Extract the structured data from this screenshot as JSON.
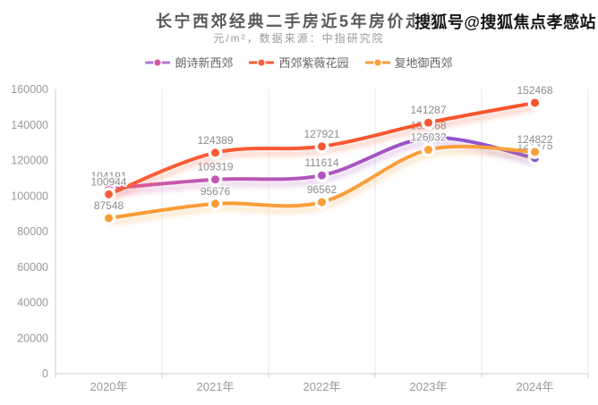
{
  "watermark": {
    "text": "搜狐号@搜狐焦点孝感站"
  },
  "chart_data": {
    "type": "line",
    "smooth": true,
    "title": "长宁西郊经典二手房近5年房价走势",
    "subtitle": "元/m²，数据来源：中指研究院",
    "xlabel": "",
    "ylabel": "",
    "categories": [
      "2020年",
      "2021年",
      "2022年",
      "2023年",
      "2024年"
    ],
    "series": [
      {
        "name": "朗诗新西郊",
        "values": [
          104191,
          109319,
          111614,
          132668,
          121375
        ],
        "line_color_start": "#df5a9e",
        "line_color_end": "#7b52dd",
        "legend_line": "#b476d8",
        "legend_dot": "#d6569e"
      },
      {
        "name": "西郊紫薇花园",
        "values": [
          100944,
          124389,
          127921,
          141287,
          152468
        ],
        "line_color_start": "#fa6038",
        "line_color_end": "#f8512c",
        "legend_line": "#f85c38",
        "legend_dot": "#f85c38"
      },
      {
        "name": "复地御西郊",
        "values": [
          87548,
          95676,
          96562,
          126032,
          124822
        ],
        "line_color_start": "#f99a33",
        "line_color_end": "#faa13c",
        "legend_line": "#f99c36",
        "legend_dot": "#f99c36"
      }
    ],
    "ylim": [
      0,
      160000
    ],
    "y_ticks": [
      0,
      20000,
      40000,
      60000,
      80000,
      100000,
      120000,
      140000,
      160000
    ],
    "legend_position": "top",
    "grid": {
      "vertical_split_lines": true,
      "horizontal_split_lines": false
    }
  },
  "style": {
    "axis_color": "#cccccc",
    "split_line_color": "#e9e9e9",
    "axis_label_color": "#999999",
    "data_label_color": "#8c8c8c",
    "title_color": "#595959",
    "subtitle_color": "#9a9a9a",
    "legend_text_color": "#666666",
    "background": "#ffffff"
  }
}
